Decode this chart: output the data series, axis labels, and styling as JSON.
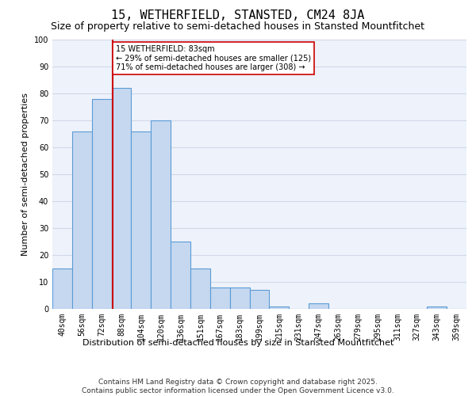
{
  "title": "15, WETHERFIELD, STANSTED, CM24 8JA",
  "subtitle": "Size of property relative to semi-detached houses in Stansted Mountfitchet",
  "xlabel": "Distribution of semi-detached houses by size in Stansted Mountfitchet",
  "ylabel": "Number of semi-detached properties",
  "categories": [
    "40sqm",
    "56sqm",
    "72sqm",
    "88sqm",
    "104sqm",
    "120sqm",
    "136sqm",
    "151sqm",
    "167sqm",
    "183sqm",
    "199sqm",
    "215sqm",
    "231sqm",
    "247sqm",
    "263sqm",
    "279sqm",
    "295sqm",
    "311sqm",
    "327sqm",
    "343sqm",
    "359sqm"
  ],
  "values": [
    15,
    66,
    78,
    82,
    66,
    70,
    25,
    15,
    8,
    8,
    7,
    1,
    0,
    2,
    0,
    0,
    0,
    0,
    0,
    1,
    0
  ],
  "bar_color": "#c5d8f0",
  "bar_edge_color": "#5b9bd5",
  "bar_edge_width": 0.8,
  "red_line_label": "15 WETHERFIELD: 83sqm",
  "pct_smaller": "29% of semi-detached houses are smaller (125)",
  "pct_larger": "71% of semi-detached houses are larger (308)",
  "annotation_box_color": "#ffffff",
  "annotation_box_edge": "#cc0000",
  "ylim": [
    0,
    100
  ],
  "yticks": [
    0,
    10,
    20,
    30,
    40,
    50,
    60,
    70,
    80,
    90,
    100
  ],
  "grid_color": "#d0d8e8",
  "background_color": "#eef2fa",
  "footer": "Contains HM Land Registry data © Crown copyright and database right 2025.\nContains public sector information licensed under the Open Government Licence v3.0.",
  "title_fontsize": 11,
  "subtitle_fontsize": 9,
  "xlabel_fontsize": 8,
  "ylabel_fontsize": 8,
  "tick_fontsize": 7,
  "footer_fontsize": 6.5
}
